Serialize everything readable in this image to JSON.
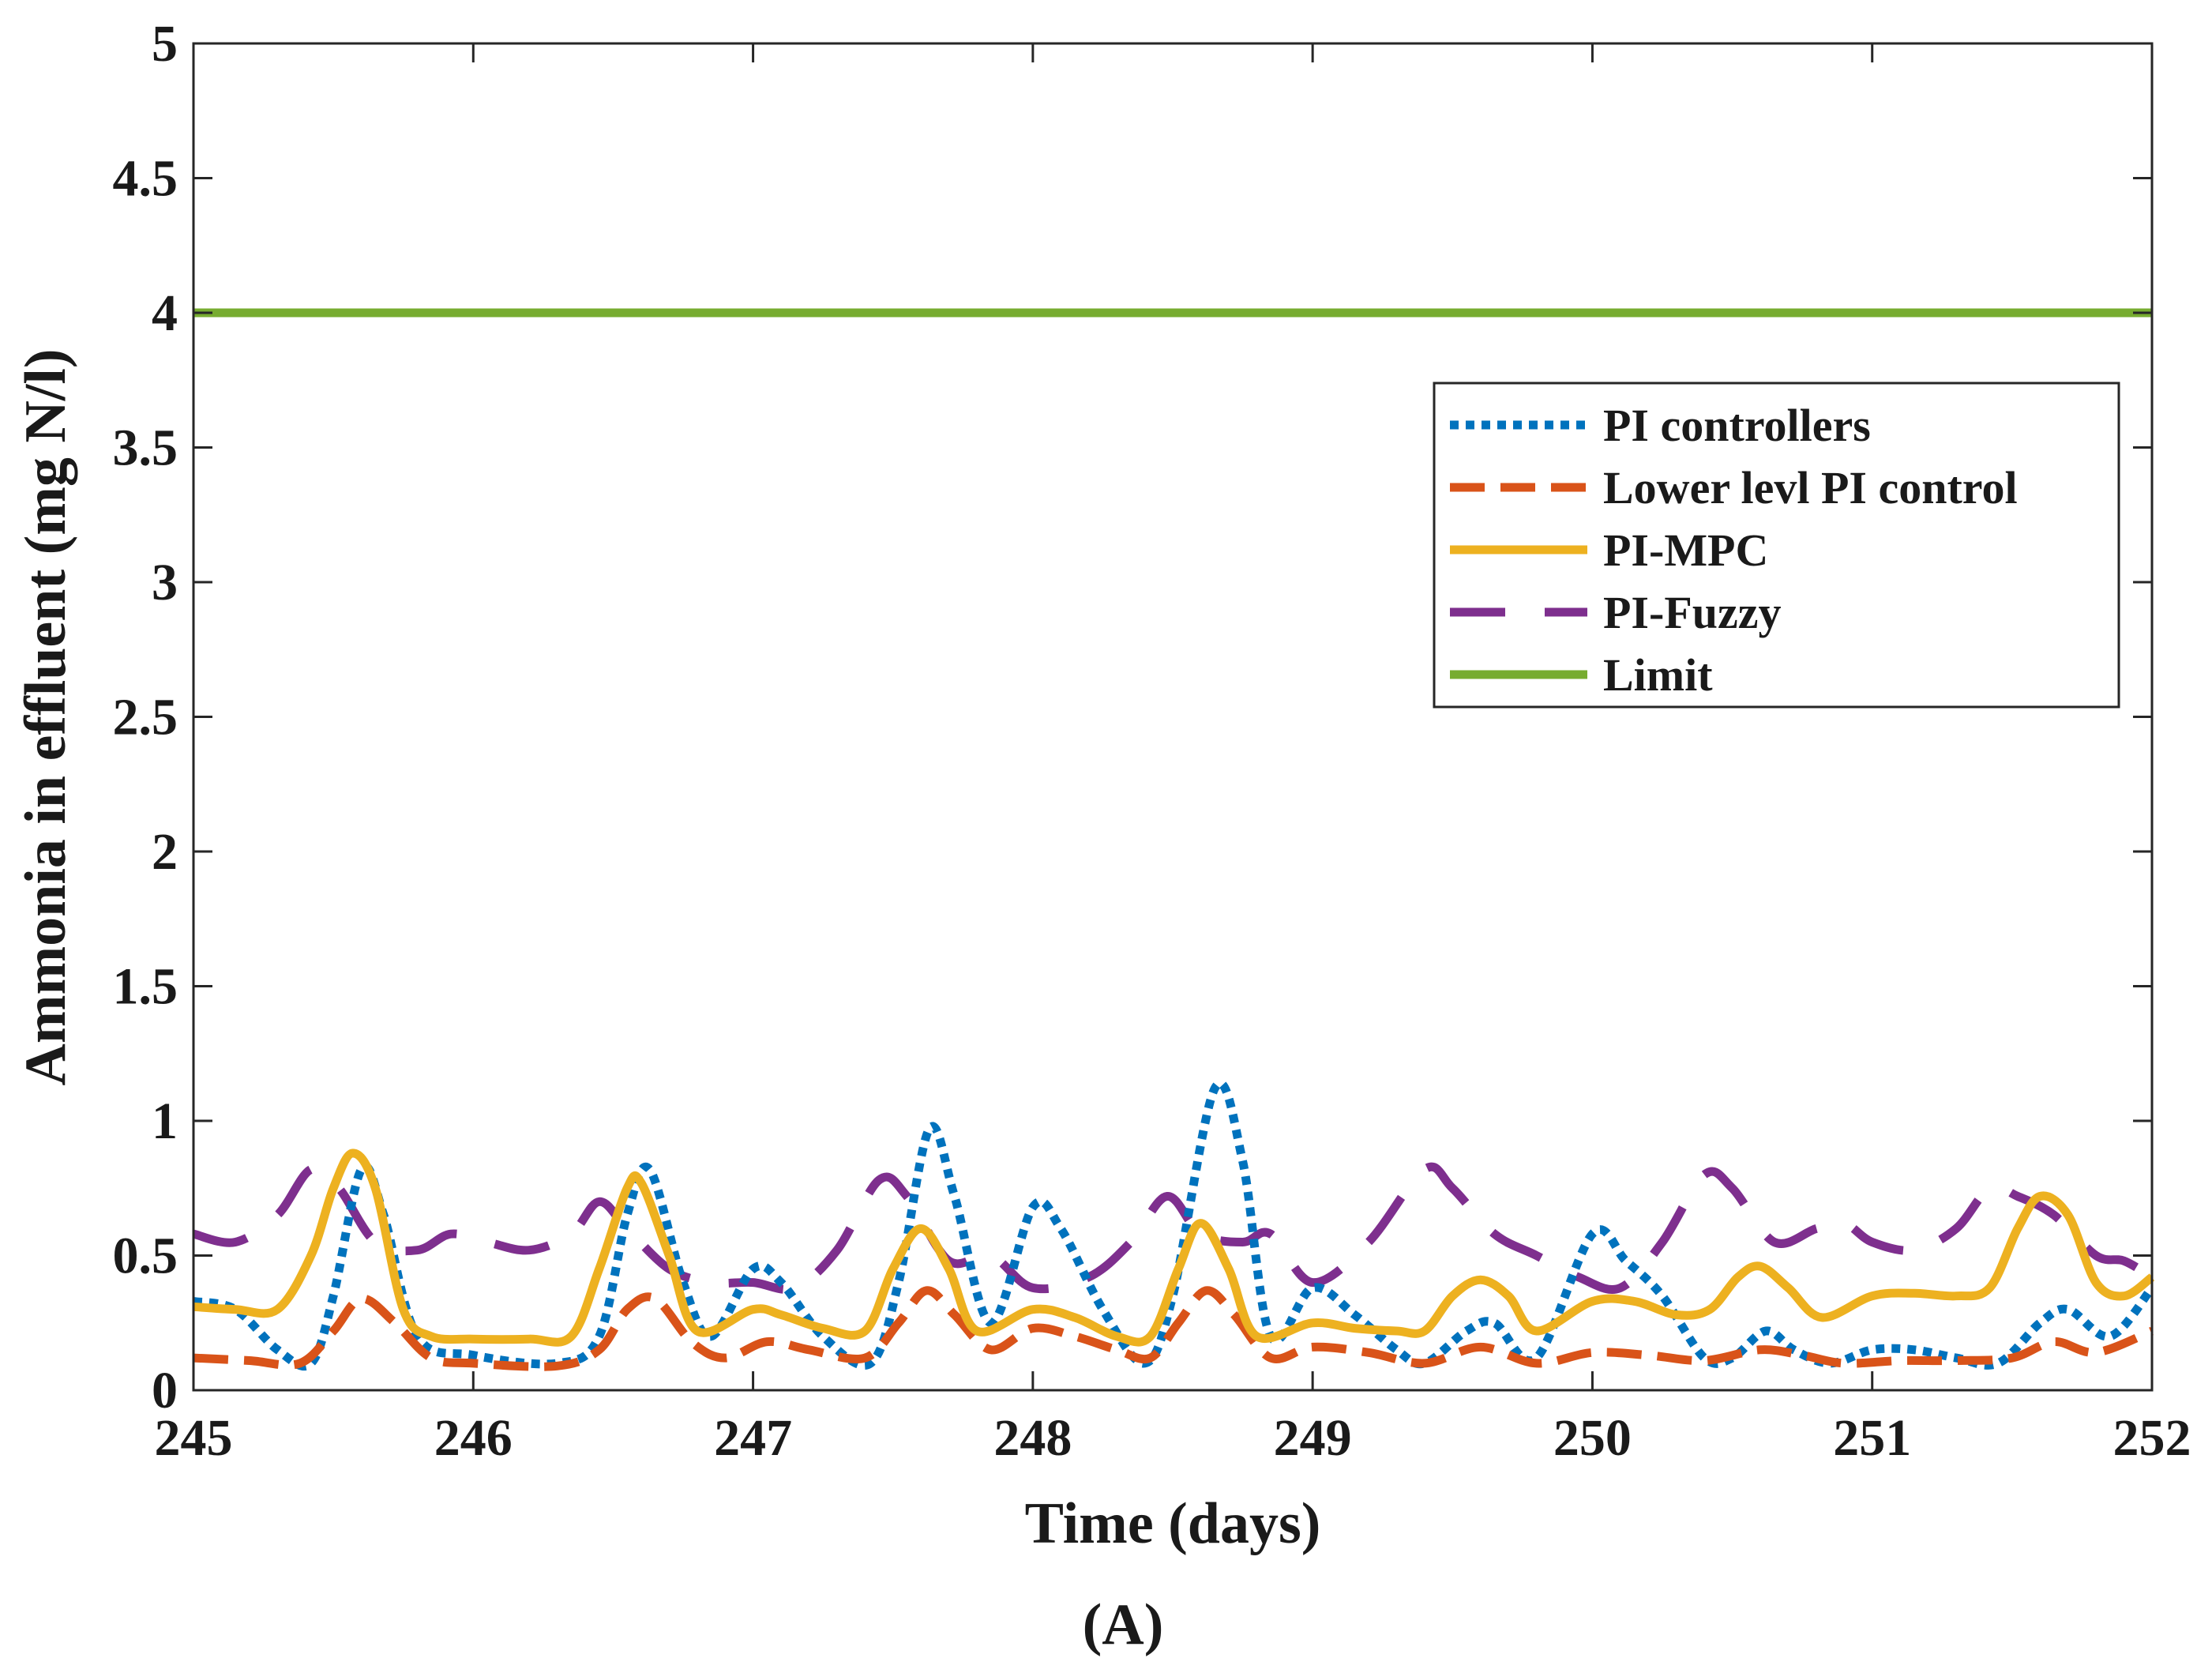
{
  "chart_data": {
    "type": "line",
    "panel_label": "(A)",
    "xlabel": "Time (days)",
    "ylabel": "Ammonia in effluent (mg N/l)",
    "xlim": [
      245,
      252
    ],
    "ylim": [
      0,
      5
    ],
    "xticks": [
      245,
      246,
      247,
      248,
      249,
      250,
      251,
      252
    ],
    "yticks": [
      0,
      0.5,
      1,
      1.5,
      2,
      2.5,
      3,
      3.5,
      4,
      4.5,
      5
    ],
    "xtick_labels": [
      "245",
      "246",
      "247",
      "248",
      "249",
      "250",
      "251",
      "252"
    ],
    "ytick_labels": [
      "0",
      "0.5",
      "1",
      "1.5",
      "2",
      "2.5",
      "3",
      "3.5",
      "4",
      "4.5",
      "5"
    ],
    "legend_position": "upper-right",
    "grid": false,
    "series": [
      {
        "name": "PI controllers",
        "color": "#0072BD",
        "style": "dotted",
        "points": [
          [
            245.0,
            0.33
          ],
          [
            245.15,
            0.3
          ],
          [
            245.3,
            0.15
          ],
          [
            245.42,
            0.1
          ],
          [
            245.5,
            0.35
          ],
          [
            245.6,
            0.82
          ],
          [
            245.68,
            0.65
          ],
          [
            245.8,
            0.2
          ],
          [
            246.0,
            0.13
          ],
          [
            246.3,
            0.1
          ],
          [
            246.45,
            0.2
          ],
          [
            246.55,
            0.65
          ],
          [
            246.63,
            0.82
          ],
          [
            246.75,
            0.4
          ],
          [
            246.85,
            0.2
          ],
          [
            247.0,
            0.45
          ],
          [
            247.1,
            0.4
          ],
          [
            247.25,
            0.2
          ],
          [
            247.42,
            0.1
          ],
          [
            247.52,
            0.4
          ],
          [
            247.63,
            0.97
          ],
          [
            247.72,
            0.72
          ],
          [
            247.85,
            0.25
          ],
          [
            248.0,
            0.68
          ],
          [
            248.1,
            0.6
          ],
          [
            248.25,
            0.3
          ],
          [
            248.4,
            0.1
          ],
          [
            248.5,
            0.35
          ],
          [
            248.65,
            1.12
          ],
          [
            248.75,
            0.85
          ],
          [
            248.85,
            0.2
          ],
          [
            249.0,
            0.38
          ],
          [
            249.15,
            0.28
          ],
          [
            249.3,
            0.15
          ],
          [
            249.4,
            0.1
          ],
          [
            249.55,
            0.22
          ],
          [
            249.65,
            0.25
          ],
          [
            249.8,
            0.12
          ],
          [
            250.0,
            0.58
          ],
          [
            250.12,
            0.48
          ],
          [
            250.25,
            0.35
          ],
          [
            250.4,
            0.12
          ],
          [
            250.5,
            0.12
          ],
          [
            250.62,
            0.22
          ],
          [
            250.72,
            0.15
          ],
          [
            250.85,
            0.1
          ],
          [
            251.0,
            0.15
          ],
          [
            251.15,
            0.15
          ],
          [
            251.3,
            0.12
          ],
          [
            251.45,
            0.1
          ],
          [
            251.6,
            0.25
          ],
          [
            251.7,
            0.3
          ],
          [
            251.85,
            0.2
          ],
          [
            252.0,
            0.38
          ]
        ]
      },
      {
        "name": "Lower levl PI control",
        "color": "#D95319",
        "style": "dashed",
        "points": [
          [
            245.0,
            0.12
          ],
          [
            245.2,
            0.11
          ],
          [
            245.38,
            0.1
          ],
          [
            245.5,
            0.22
          ],
          [
            245.6,
            0.34
          ],
          [
            245.72,
            0.25
          ],
          [
            245.85,
            0.12
          ],
          [
            246.0,
            0.1
          ],
          [
            246.3,
            0.09
          ],
          [
            246.45,
            0.15
          ],
          [
            246.55,
            0.3
          ],
          [
            246.65,
            0.34
          ],
          [
            246.78,
            0.18
          ],
          [
            246.9,
            0.12
          ],
          [
            247.05,
            0.18
          ],
          [
            247.2,
            0.15
          ],
          [
            247.4,
            0.12
          ],
          [
            247.52,
            0.25
          ],
          [
            247.62,
            0.37
          ],
          [
            247.72,
            0.28
          ],
          [
            247.85,
            0.15
          ],
          [
            248.0,
            0.23
          ],
          [
            248.15,
            0.2
          ],
          [
            248.3,
            0.15
          ],
          [
            248.42,
            0.12
          ],
          [
            248.52,
            0.25
          ],
          [
            248.62,
            0.37
          ],
          [
            248.72,
            0.28
          ],
          [
            248.85,
            0.12
          ],
          [
            249.0,
            0.16
          ],
          [
            249.2,
            0.14
          ],
          [
            249.4,
            0.1
          ],
          [
            249.6,
            0.16
          ],
          [
            249.8,
            0.1
          ],
          [
            250.0,
            0.14
          ],
          [
            250.2,
            0.13
          ],
          [
            250.4,
            0.11
          ],
          [
            250.6,
            0.15
          ],
          [
            250.75,
            0.13
          ],
          [
            250.9,
            0.1
          ],
          [
            251.1,
            0.11
          ],
          [
            251.3,
            0.11
          ],
          [
            251.5,
            0.12
          ],
          [
            251.65,
            0.18
          ],
          [
            251.8,
            0.14
          ],
          [
            252.0,
            0.22
          ]
        ]
      },
      {
        "name": "PI-MPC",
        "color": "#EDB120",
        "style": "solid",
        "points": [
          [
            245.0,
            0.31
          ],
          [
            245.15,
            0.3
          ],
          [
            245.3,
            0.3
          ],
          [
            245.42,
            0.5
          ],
          [
            245.5,
            0.75
          ],
          [
            245.57,
            0.88
          ],
          [
            245.65,
            0.75
          ],
          [
            245.75,
            0.3
          ],
          [
            245.85,
            0.2
          ],
          [
            246.0,
            0.19
          ],
          [
            246.2,
            0.19
          ],
          [
            246.35,
            0.2
          ],
          [
            246.45,
            0.45
          ],
          [
            246.55,
            0.75
          ],
          [
            246.6,
            0.77
          ],
          [
            246.7,
            0.5
          ],
          [
            246.8,
            0.22
          ],
          [
            247.0,
            0.3
          ],
          [
            247.1,
            0.28
          ],
          [
            247.25,
            0.23
          ],
          [
            247.4,
            0.22
          ],
          [
            247.5,
            0.45
          ],
          [
            247.6,
            0.6
          ],
          [
            247.7,
            0.45
          ],
          [
            247.8,
            0.22
          ],
          [
            248.0,
            0.3
          ],
          [
            248.15,
            0.27
          ],
          [
            248.3,
            0.2
          ],
          [
            248.42,
            0.2
          ],
          [
            248.52,
            0.45
          ],
          [
            248.6,
            0.62
          ],
          [
            248.7,
            0.45
          ],
          [
            248.8,
            0.2
          ],
          [
            249.0,
            0.25
          ],
          [
            249.15,
            0.23
          ],
          [
            249.3,
            0.22
          ],
          [
            249.4,
            0.22
          ],
          [
            249.5,
            0.35
          ],
          [
            249.6,
            0.41
          ],
          [
            249.7,
            0.35
          ],
          [
            249.8,
            0.22
          ],
          [
            250.0,
            0.33
          ],
          [
            250.15,
            0.33
          ],
          [
            250.3,
            0.28
          ],
          [
            250.42,
            0.3
          ],
          [
            250.52,
            0.42
          ],
          [
            250.6,
            0.46
          ],
          [
            250.7,
            0.38
          ],
          [
            250.82,
            0.27
          ],
          [
            251.0,
            0.35
          ],
          [
            251.15,
            0.36
          ],
          [
            251.3,
            0.35
          ],
          [
            251.42,
            0.38
          ],
          [
            251.52,
            0.6
          ],
          [
            251.6,
            0.72
          ],
          [
            251.7,
            0.65
          ],
          [
            251.8,
            0.4
          ],
          [
            251.9,
            0.35
          ],
          [
            252.0,
            0.42
          ]
        ]
      },
      {
        "name": "PI-Fuzzy",
        "color": "#7E2F8E",
        "style": "longdash",
        "points": [
          [
            245.0,
            0.58
          ],
          [
            245.15,
            0.55
          ],
          [
            245.3,
            0.65
          ],
          [
            245.42,
            0.82
          ],
          [
            245.52,
            0.75
          ],
          [
            245.65,
            0.55
          ],
          [
            245.8,
            0.52
          ],
          [
            245.92,
            0.58
          ],
          [
            246.05,
            0.55
          ],
          [
            246.2,
            0.52
          ],
          [
            246.35,
            0.58
          ],
          [
            246.45,
            0.7
          ],
          [
            246.55,
            0.6
          ],
          [
            246.7,
            0.45
          ],
          [
            246.85,
            0.4
          ],
          [
            247.0,
            0.4
          ],
          [
            247.15,
            0.38
          ],
          [
            247.3,
            0.52
          ],
          [
            247.45,
            0.78
          ],
          [
            247.55,
            0.72
          ],
          [
            247.7,
            0.48
          ],
          [
            247.85,
            0.5
          ],
          [
            248.0,
            0.38
          ],
          [
            248.2,
            0.42
          ],
          [
            248.35,
            0.55
          ],
          [
            248.48,
            0.72
          ],
          [
            248.6,
            0.58
          ],
          [
            248.75,
            0.55
          ],
          [
            248.85,
            0.58
          ],
          [
            249.0,
            0.4
          ],
          [
            249.2,
            0.55
          ],
          [
            249.4,
            0.82
          ],
          [
            249.5,
            0.75
          ],
          [
            249.65,
            0.58
          ],
          [
            249.8,
            0.5
          ],
          [
            249.95,
            0.42
          ],
          [
            250.1,
            0.38
          ],
          [
            250.25,
            0.55
          ],
          [
            250.4,
            0.8
          ],
          [
            250.5,
            0.75
          ],
          [
            250.65,
            0.55
          ],
          [
            250.8,
            0.6
          ],
          [
            250.9,
            0.62
          ],
          [
            251.0,
            0.55
          ],
          [
            251.15,
            0.52
          ],
          [
            251.3,
            0.6
          ],
          [
            251.42,
            0.75
          ],
          [
            251.52,
            0.72
          ],
          [
            251.65,
            0.65
          ],
          [
            251.8,
            0.5
          ],
          [
            251.9,
            0.48
          ],
          [
            252.0,
            0.42
          ]
        ]
      },
      {
        "name": "Limit",
        "color": "#77AC30",
        "style": "solid",
        "points": [
          [
            245.0,
            4.0
          ],
          [
            252.0,
            4.0
          ]
        ]
      }
    ]
  }
}
